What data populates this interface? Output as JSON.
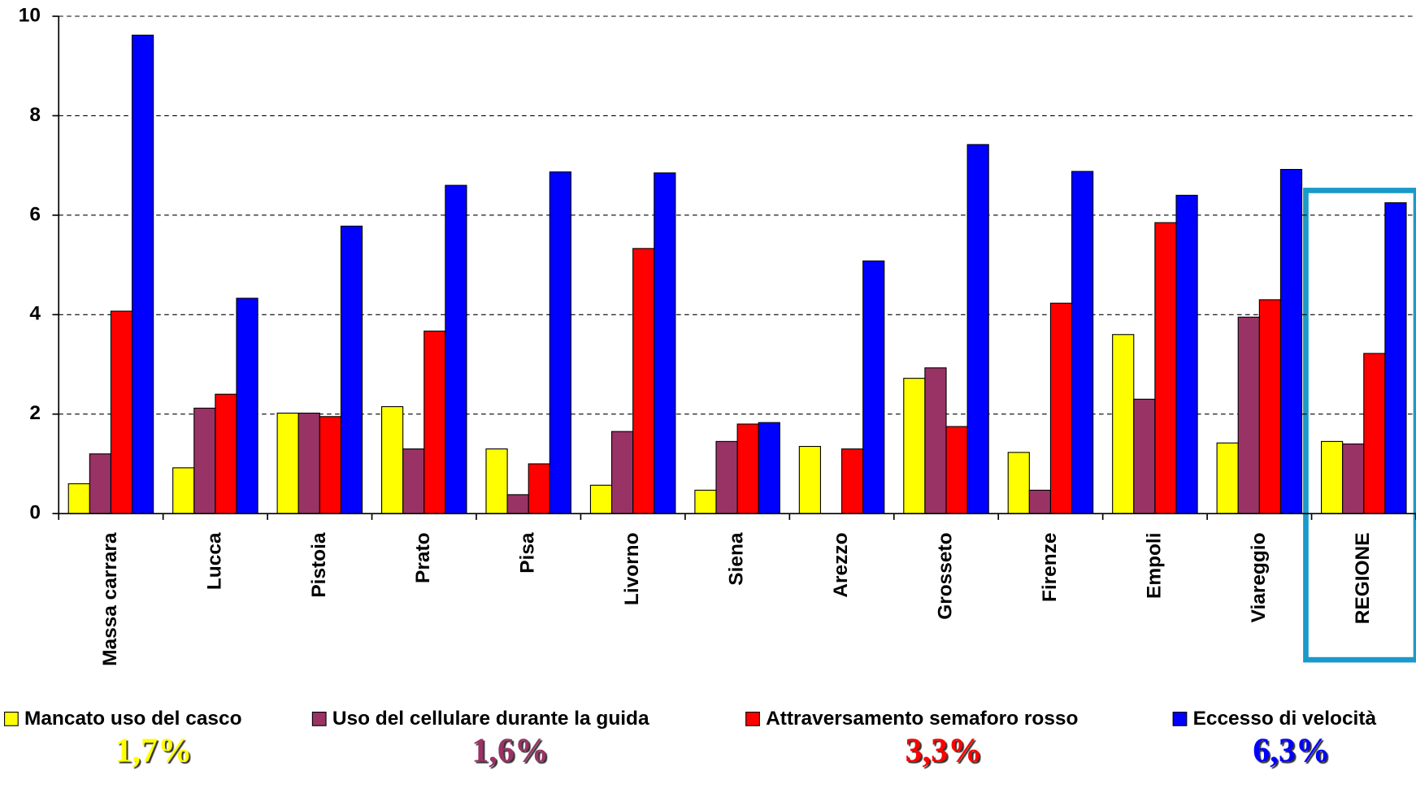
{
  "chart_data": {
    "type": "bar",
    "categories": [
      "Massa carrara",
      "Lucca",
      "Pistoia",
      "Prato",
      "Pisa",
      "Livorno",
      "Siena",
      "Arezzo",
      "Grosseto",
      "Firenze",
      "Empoli",
      "Viareggio",
      "REGIONE"
    ],
    "series": [
      {
        "name": "Mancato uso del casco",
        "color": "#ffff00",
        "values": [
          0.6,
          0.92,
          2.02,
          2.15,
          1.3,
          0.57,
          0.47,
          1.35,
          2.72,
          1.23,
          3.6,
          1.42,
          1.45
        ]
      },
      {
        "name": "Uso del cellulare durante la guida",
        "color": "#993366",
        "values": [
          1.2,
          2.12,
          2.02,
          1.3,
          0.38,
          1.65,
          1.45,
          null,
          2.93,
          0.47,
          2.3,
          3.95,
          1.4
        ]
      },
      {
        "name": "Attraversamento semaforo rosso",
        "color": "#ff0000",
        "values": [
          4.07,
          2.4,
          1.95,
          3.67,
          1.0,
          5.33,
          1.8,
          1.3,
          1.75,
          4.23,
          5.85,
          4.3,
          3.22
        ]
      },
      {
        "name": "Eccesso di velocità",
        "color": "#0000ff",
        "values": [
          9.62,
          4.33,
          5.78,
          6.6,
          6.87,
          6.85,
          1.83,
          5.08,
          7.42,
          6.88,
          6.4,
          6.92,
          6.25
        ]
      }
    ],
    "ylim": [
      0,
      10
    ],
    "yticks": [
      0,
      2,
      4,
      6,
      8,
      10
    ],
    "grid": true,
    "annotations": [
      {
        "text": "1,7%",
        "color": "#ffff00"
      },
      {
        "text": "1,6%",
        "color": "#993366"
      },
      {
        "text": "3,3%",
        "color": "#ff0000"
      },
      {
        "text": "6,3%",
        "color": "#0000ff"
      }
    ]
  }
}
